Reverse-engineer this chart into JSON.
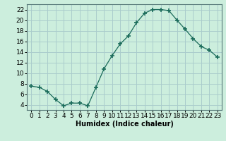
{
  "x": [
    0,
    1,
    2,
    3,
    4,
    5,
    6,
    7,
    8,
    9,
    10,
    11,
    12,
    13,
    14,
    15,
    16,
    17,
    18,
    19,
    20,
    21,
    22,
    23
  ],
  "y": [
    7.5,
    7.3,
    6.5,
    5.0,
    3.8,
    4.3,
    4.3,
    3.8,
    7.3,
    10.8,
    13.3,
    15.5,
    17.0,
    19.5,
    21.3,
    22.0,
    22.0,
    21.8,
    20.0,
    18.3,
    16.5,
    15.0,
    14.3,
    13.0
  ],
  "line_color": "#1a6b5a",
  "marker": "+",
  "marker_size": 4,
  "marker_lw": 1.2,
  "bg_color": "#cceedd",
  "grid_color": "#aacccc",
  "xlabel": "Humidex (Indice chaleur)",
  "xlim": [
    -0.5,
    23.5
  ],
  "ylim": [
    3,
    23
  ],
  "yticks": [
    4,
    6,
    8,
    10,
    12,
    14,
    16,
    18,
    20,
    22
  ],
  "xtick_labels": [
    "0",
    "1",
    "2",
    "3",
    "4",
    "5",
    "6",
    "7",
    "8",
    "9",
    "10",
    "11",
    "12",
    "13",
    "14",
    "15",
    "16",
    "17",
    "18",
    "19",
    "20",
    "21",
    "22",
    "23"
  ],
  "xlabel_fontsize": 7,
  "tick_fontsize": 6.5
}
